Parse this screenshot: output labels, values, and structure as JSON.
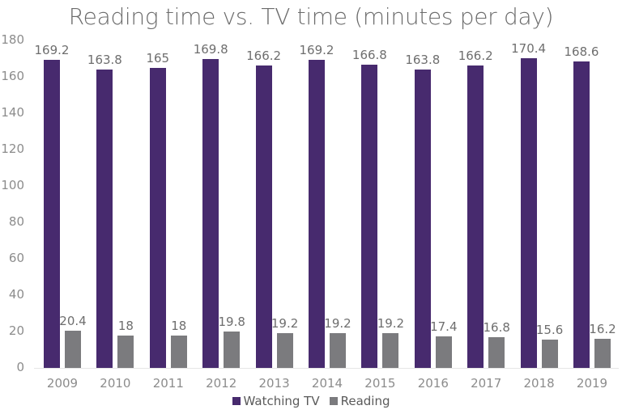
{
  "chart_data": {
    "type": "bar",
    "title": "Reading time vs. TV time (minutes per day)",
    "xlabel": "",
    "ylabel": "",
    "ylim": [
      0,
      180
    ],
    "yticks": [
      0,
      20,
      40,
      60,
      80,
      100,
      120,
      140,
      160,
      180
    ],
    "grid": false,
    "legend_position": "bottom",
    "categories": [
      "2009",
      "2010",
      "2011",
      "2012",
      "2013",
      "2014",
      "2015",
      "2016",
      "2017",
      "2018",
      "2019"
    ],
    "series": [
      {
        "name": "Watching TV",
        "color": "#472a6e",
        "values": [
          169.2,
          163.8,
          165,
          169.8,
          166.2,
          169.2,
          166.8,
          163.8,
          166.2,
          170.4,
          168.6
        ],
        "labels": [
          "169.2",
          "163.8",
          "165",
          "169.8",
          "166.2",
          "169.2",
          "166.8",
          "163.8",
          "166.2",
          "170.4",
          "168.6"
        ]
      },
      {
        "name": "Reading",
        "color": "#7b7b7e",
        "values": [
          20.4,
          18,
          18,
          19.8,
          19.2,
          19.2,
          19.2,
          17.4,
          16.8,
          15.6,
          16.2
        ],
        "labels": [
          "20.4",
          "18",
          "18",
          "19.8",
          "19.2",
          "19.2",
          "19.2",
          "17.4",
          "16.8",
          "15.6",
          "16.2"
        ]
      }
    ]
  }
}
